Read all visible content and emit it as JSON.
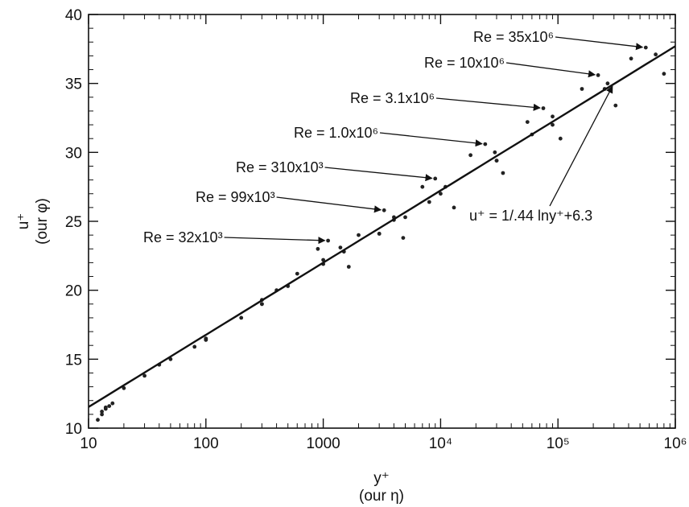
{
  "chart_data": {
    "type": "scatter",
    "x_scale": "log",
    "xlim": [
      10,
      1000000
    ],
    "ylim": [
      10,
      40
    ],
    "grid": false,
    "legend": "none",
    "xlabel": "y⁺",
    "xlabel_sub": "(our η)",
    "ylabel": "u⁺",
    "ylabel_sub": "(our φ)",
    "x_ticks": [
      {
        "value": 10,
        "label": "10"
      },
      {
        "value": 100,
        "label": "100"
      },
      {
        "value": 1000,
        "label": "1000"
      },
      {
        "value": 10000,
        "label": "10⁴"
      },
      {
        "value": 100000,
        "label": "10⁵"
      },
      {
        "value": 1000000,
        "label": "10⁶"
      }
    ],
    "y_ticks": [
      {
        "value": 10,
        "label": "10"
      },
      {
        "value": 15,
        "label": "15"
      },
      {
        "value": 20,
        "label": "20"
      },
      {
        "value": 25,
        "label": "25"
      },
      {
        "value": 30,
        "label": "30"
      },
      {
        "value": 35,
        "label": "35"
      },
      {
        "value": 40,
        "label": "40"
      }
    ],
    "log_law": {
      "label": "u⁺ = 1/.44 lny⁺+6.3",
      "kappa": 0.44,
      "B": 6.3,
      "x_range": [
        10,
        1000000
      ]
    },
    "series": [
      {
        "name": "Re = 32x10³",
        "outer_x": 1100,
        "peak_y": 23.6,
        "points": [
          [
            12,
            10.6
          ],
          [
            20,
            12.9
          ],
          [
            40,
            14.6
          ],
          [
            100,
            16.5
          ],
          [
            300,
            19.0
          ],
          [
            600,
            21.2
          ],
          [
            900,
            23.0
          ],
          [
            1100,
            23.6
          ],
          [
            1400,
            23.1
          ],
          [
            1650,
            21.7
          ]
        ]
      },
      {
        "name": "Re = 99x10³",
        "outer_x": 3300,
        "peak_y": 25.8,
        "points": [
          [
            13,
            11.0
          ],
          [
            30,
            13.8
          ],
          [
            100,
            16.4
          ],
          [
            400,
            20.0
          ],
          [
            1000,
            22.2
          ],
          [
            2000,
            24.0
          ],
          [
            3300,
            25.8
          ],
          [
            4000,
            25.3
          ],
          [
            4800,
            23.8
          ]
        ]
      },
      {
        "name": "Re = 310x10³",
        "outer_x": 9000,
        "peak_y": 28.1,
        "points": [
          [
            13,
            11.2
          ],
          [
            50,
            15.0
          ],
          [
            300,
            19.3
          ],
          [
            1500,
            22.8
          ],
          [
            4000,
            25.1
          ],
          [
            7000,
            27.5
          ],
          [
            9000,
            28.1
          ],
          [
            11000,
            27.5
          ],
          [
            13000,
            26.0
          ]
        ]
      },
      {
        "name": "Re = 1.0x10⁶",
        "outer_x": 24000,
        "peak_y": 30.6,
        "points": [
          [
            14,
            11.4
          ],
          [
            80,
            15.9
          ],
          [
            500,
            20.3
          ],
          [
            3000,
            24.1
          ],
          [
            10000,
            27.0
          ],
          [
            18000,
            29.8
          ],
          [
            24000,
            30.6
          ],
          [
            29000,
            30.0
          ],
          [
            34000,
            28.5
          ]
        ]
      },
      {
        "name": "Re = 3.1x10⁶",
        "outer_x": 75000,
        "peak_y": 33.2,
        "points": [
          [
            14,
            11.5
          ],
          [
            100,
            16.4
          ],
          [
            1000,
            21.9
          ],
          [
            8000,
            26.4
          ],
          [
            30000,
            29.4
          ],
          [
            55000,
            32.2
          ],
          [
            75000,
            33.2
          ],
          [
            90000,
            32.6
          ],
          [
            105000,
            31.0
          ]
        ]
      },
      {
        "name": "Re = 10x10⁶",
        "outer_x": 220000,
        "peak_y": 35.6,
        "points": [
          [
            15,
            11.6
          ],
          [
            200,
            18.0
          ],
          [
            3000,
            24.1
          ],
          [
            30000,
            29.4
          ],
          [
            90000,
            32.0
          ],
          [
            160000,
            34.6
          ],
          [
            220000,
            35.6
          ],
          [
            265000,
            35.0
          ],
          [
            310000,
            33.4
          ]
        ]
      },
      {
        "name": "Re = 35x10⁶",
        "outer_x": 560000,
        "peak_y": 37.6,
        "points": [
          [
            16,
            11.8
          ],
          [
            300,
            19.0
          ],
          [
            5000,
            25.3
          ],
          [
            60000,
            31.3
          ],
          [
            250000,
            34.6
          ],
          [
            420000,
            36.8
          ],
          [
            560000,
            37.6
          ],
          [
            680000,
            37.1
          ],
          [
            800000,
            35.7
          ]
        ]
      }
    ],
    "annotations": [
      {
        "text": "Re = 35x10⁶",
        "target": [
          560000,
          37.6
        ]
      },
      {
        "text": "Re = 10x10⁶",
        "target": [
          220000,
          35.6
        ]
      },
      {
        "text": "Re = 3.1x10⁶",
        "target": [
          75000,
          33.2
        ]
      },
      {
        "text": "Re = 1.0x10⁶",
        "target": [
          24000,
          30.6
        ]
      },
      {
        "text": "Re = 310x10³",
        "target": [
          9000,
          28.1
        ]
      },
      {
        "text": "Re = 99x10³",
        "target": [
          3300,
          25.8
        ]
      },
      {
        "text": "Re = 32x10³",
        "target": [
          1100,
          23.6
        ]
      },
      {
        "text": "u⁺ = 1/.44 lny⁺+6.3",
        "target": [
          300000,
          35.0
        ]
      }
    ]
  }
}
